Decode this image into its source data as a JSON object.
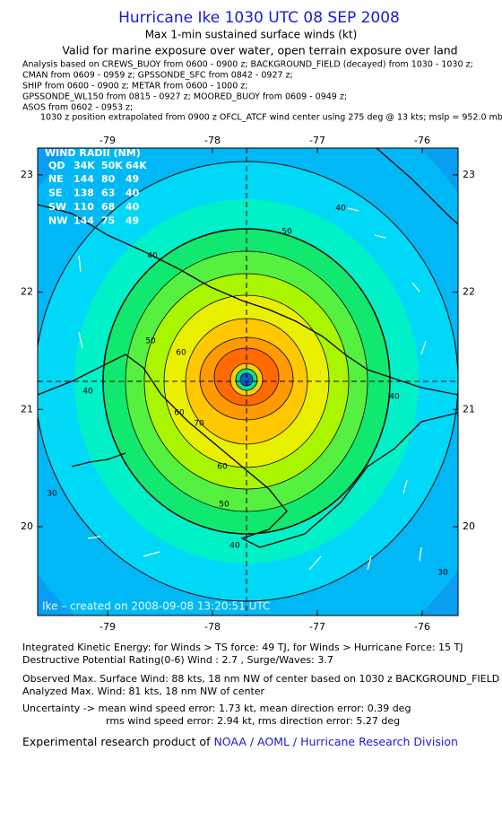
{
  "header": {
    "title": "Hurricane Ike 1030 UTC 08 SEP 2008",
    "subtitle": "Max 1-min sustained surface winds (kt)",
    "valid_line": "Valid for marine exposure over water, open terrain exposure over land",
    "analysis_lines": [
      "Analysis based on  CREWS_BUOY from 0600 - 0900 z;  BACKGROUND_FIELD (decayed) from 1030 - 1030 z;",
      "CMAN from 0609 - 0959 z;  GPSSONDE_SFC from 0842 - 0927 z;",
      "SHIP from 0600 - 0900 z;  METAR from 0600 - 1000 z;",
      "GPSSONDE_WL150 from 0815 - 0927 z;  MOORED_BUOY from 0609 - 0949 z;",
      "ASOS from 0602 - 0953 z;"
    ],
    "position_line": "1030 z position extrapolated from 0900 z OFCL_ATCF wind center using 275 deg @ 13 kts;  mslp = 952.0 mb"
  },
  "map": {
    "xticks": [
      -79,
      -78,
      -77,
      -76
    ],
    "yticks": [
      20,
      21,
      22,
      23
    ],
    "wind_radii": {
      "title": "WIND RADII (NM)",
      "columns": [
        "QD",
        "34K",
        "50K",
        "64K"
      ],
      "rows": [
        [
          "NE",
          "144",
          "80",
          "49"
        ],
        [
          "SE",
          "138",
          "63",
          "40"
        ],
        [
          "SW",
          "110",
          "68",
          "40"
        ],
        [
          "NW",
          "144",
          "75",
          "49"
        ]
      ]
    },
    "contour_labels": [
      "40",
      "50",
      "40",
      "50",
      "60",
      "40",
      "60",
      "70",
      "40",
      "60",
      "50",
      "40",
      "30",
      "30"
    ],
    "credit": "Ike – created on 2008-09-08 13:20:51 UTC"
  },
  "footer": {
    "ike_line": "Integrated Kinetic Energy:  for Winds > TS force: 49 TJ,  for Winds > Hurricane Force: 15 TJ",
    "dpr_line": "Destructive Potential Rating(0-6)   Wind : 2.7 , Surge/Waves: 3.7",
    "observed_line": "Observed Max. Surface Wind: 88 kts, 18 nm NW of center based on 1030 z BACKGROUND_FIELD",
    "analyzed_line": "Analyzed Max. Wind: 81 kts, 18 nm NW of center",
    "uncertainty_line1": "Uncertainty -> mean wind speed error: 1.73 kt,   mean direction error: 0.39 deg",
    "uncertainty_line2": "rms wind speed error: 2.94 kt,   rms direction error: 5.27 deg",
    "product_prefix": "Experimental research product of ",
    "product_org": "NOAA / AOML / Hurricane Research Division"
  }
}
